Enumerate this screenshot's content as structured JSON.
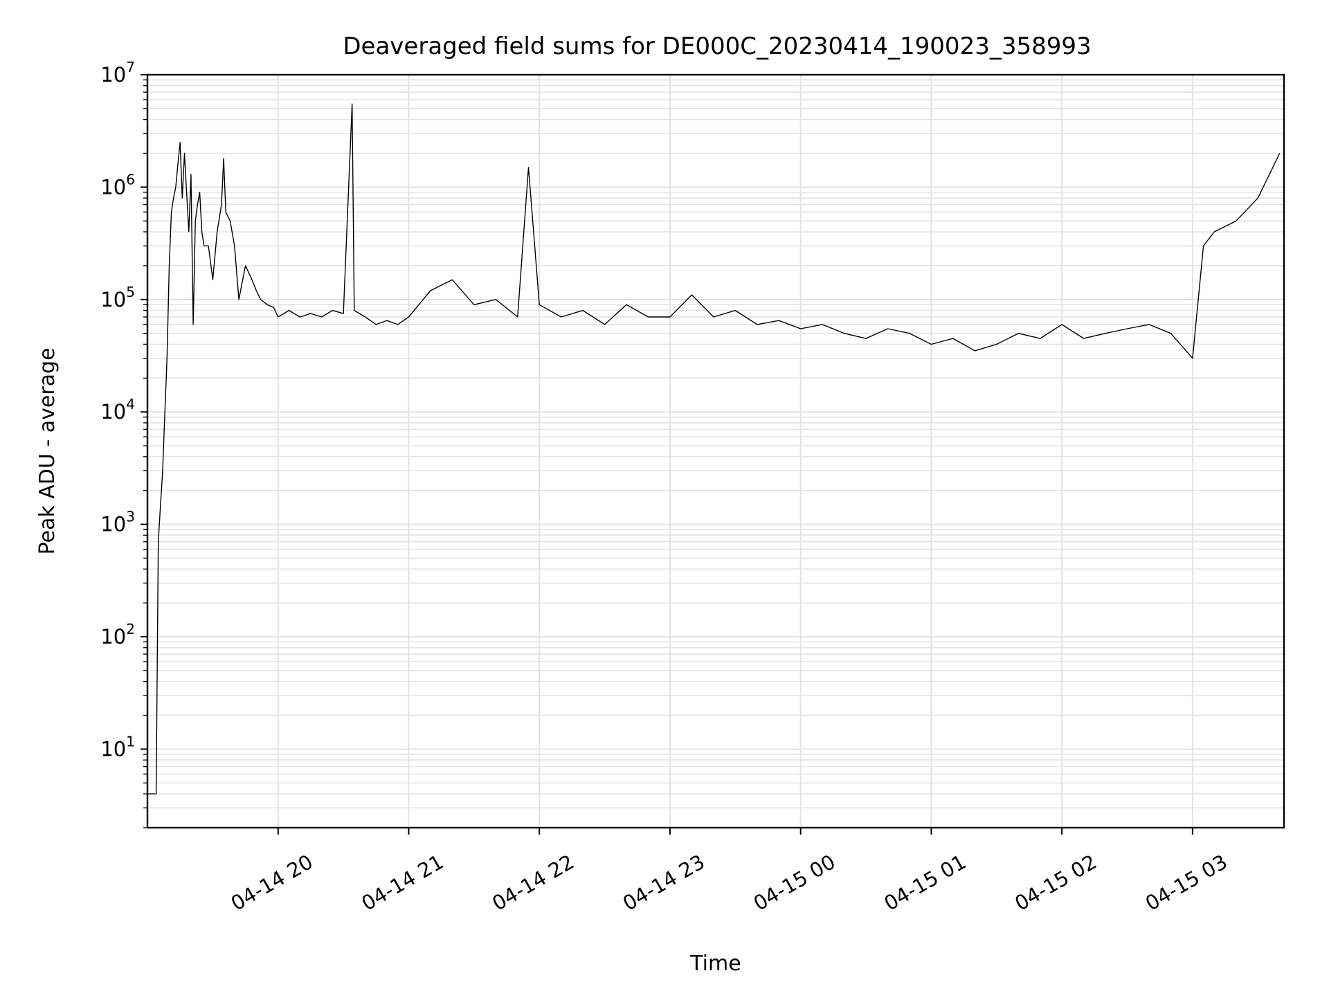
{
  "chart_data": {
    "type": "line",
    "title": "Deaveraged field sums for DE000C_20230414_190023_358993",
    "xlabel": "Time",
    "ylabel": "Peak ADU - average",
    "yscale": "log",
    "ylim": [
      2,
      10000000
    ],
    "xlim": [
      "2023-04-14 19:00",
      "2023-04-15 03:42"
    ],
    "grid": true,
    "grid_which": "both",
    "line_color": "#000000",
    "x_ticks": [
      {
        "value": "2023-04-14 20:00",
        "label": "04-14 20"
      },
      {
        "value": "2023-04-14 21:00",
        "label": "04-14 21"
      },
      {
        "value": "2023-04-14 22:00",
        "label": "04-14 22"
      },
      {
        "value": "2023-04-14 23:00",
        "label": "04-14 23"
      },
      {
        "value": "2023-04-15 00:00",
        "label": "04-15 00"
      },
      {
        "value": "2023-04-15 01:00",
        "label": "04-15 01"
      },
      {
        "value": "2023-04-15 02:00",
        "label": "04-15 02"
      },
      {
        "value": "2023-04-15 03:00",
        "label": "04-15 03"
      }
    ],
    "y_ticks": [
      {
        "value": 10,
        "base": "10",
        "exp": "1"
      },
      {
        "value": 100,
        "base": "10",
        "exp": "2"
      },
      {
        "value": 1000,
        "base": "10",
        "exp": "3"
      },
      {
        "value": 10000,
        "base": "10",
        "exp": "4"
      },
      {
        "value": 100000,
        "base": "10",
        "exp": "5"
      },
      {
        "value": 1000000,
        "base": "10",
        "exp": "6"
      },
      {
        "value": 10000000,
        "base": "10",
        "exp": "7"
      }
    ],
    "series": [
      {
        "x": [
          "2023-04-14 19:00",
          "2023-04-14 19:02",
          "2023-04-14 19:03",
          "2023-04-14 19:04",
          "2023-04-14 19:05",
          "2023-04-14 19:06",
          "2023-04-14 19:07",
          "2023-04-14 19:08",
          "2023-04-14 19:09",
          "2023-04-14 19:10",
          "2023-04-14 19:11",
          "2023-04-14 19:12",
          "2023-04-14 19:13",
          "2023-04-14 19:14",
          "2023-04-14 19:15",
          "2023-04-14 19:16",
          "2023-04-14 19:17",
          "2023-04-14 19:18",
          "2023-04-14 19:19",
          "2023-04-14 19:20",
          "2023-04-14 19:21",
          "2023-04-14 19:22",
          "2023-04-14 19:23",
          "2023-04-14 19:24",
          "2023-04-14 19:25",
          "2023-04-14 19:26",
          "2023-04-14 19:28",
          "2023-04-14 19:30",
          "2023-04-14 19:32",
          "2023-04-14 19:34",
          "2023-04-14 19:35",
          "2023-04-14 19:36",
          "2023-04-14 19:38",
          "2023-04-14 19:40",
          "2023-04-14 19:42",
          "2023-04-14 19:45",
          "2023-04-14 19:48",
          "2023-04-14 19:50",
          "2023-04-14 19:52",
          "2023-04-14 19:55",
          "2023-04-14 19:58",
          "2023-04-14 20:00",
          "2023-04-14 20:05",
          "2023-04-14 20:10",
          "2023-04-14 20:15",
          "2023-04-14 20:20",
          "2023-04-14 20:25",
          "2023-04-14 20:30",
          "2023-04-14 20:34",
          "2023-04-14 20:35",
          "2023-04-14 20:40",
          "2023-04-14 20:45",
          "2023-04-14 20:50",
          "2023-04-14 20:55",
          "2023-04-14 21:00",
          "2023-04-14 21:10",
          "2023-04-14 21:20",
          "2023-04-14 21:30",
          "2023-04-14 21:40",
          "2023-04-14 21:50",
          "2023-04-14 21:55",
          "2023-04-14 22:00",
          "2023-04-14 22:10",
          "2023-04-14 22:20",
          "2023-04-14 22:30",
          "2023-04-14 22:40",
          "2023-04-14 22:50",
          "2023-04-14 23:00",
          "2023-04-14 23:10",
          "2023-04-14 23:20",
          "2023-04-14 23:30",
          "2023-04-14 23:40",
          "2023-04-14 23:50",
          "2023-04-15 00:00",
          "2023-04-15 00:10",
          "2023-04-15 00:20",
          "2023-04-15 00:30",
          "2023-04-15 00:40",
          "2023-04-15 00:50",
          "2023-04-15 01:00",
          "2023-04-15 01:10",
          "2023-04-15 01:20",
          "2023-04-15 01:30",
          "2023-04-15 01:40",
          "2023-04-15 01:50",
          "2023-04-15 02:00",
          "2023-04-15 02:10",
          "2023-04-15 02:20",
          "2023-04-15 02:30",
          "2023-04-15 02:40",
          "2023-04-15 02:50",
          "2023-04-15 03:00",
          "2023-04-15 03:05",
          "2023-04-15 03:10",
          "2023-04-15 03:20",
          "2023-04-15 03:30",
          "2023-04-15 03:40"
        ],
        "y": [
          4,
          4,
          4,
          4,
          700,
          1500,
          3000,
          10000,
          30000,
          200000,
          600000,
          800000,
          1000000,
          1600000,
          2500000,
          800000,
          2000000,
          900000,
          400000,
          1300000,
          60000,
          500000,
          700000,
          900000,
          400000,
          300000,
          300000,
          150000,
          400000,
          700000,
          1800000,
          600000,
          500000,
          300000,
          100000,
          200000,
          150000,
          120000,
          100000,
          90000,
          85000,
          70000,
          80000,
          70000,
          75000,
          70000,
          80000,
          75000,
          5500000,
          80000,
          70000,
          60000,
          65000,
          60000,
          70000,
          120000,
          150000,
          90000,
          100000,
          70000,
          1500000,
          90000,
          70000,
          80000,
          60000,
          90000,
          70000,
          70000,
          110000,
          70000,
          80000,
          60000,
          65000,
          55000,
          60000,
          50000,
          45000,
          55000,
          50000,
          40000,
          45000,
          35000,
          40000,
          50000,
          45000,
          60000,
          45000,
          50000,
          55000,
          60000,
          50000,
          30000,
          300000,
          400000,
          500000,
          800000,
          2000000
        ]
      }
    ]
  }
}
